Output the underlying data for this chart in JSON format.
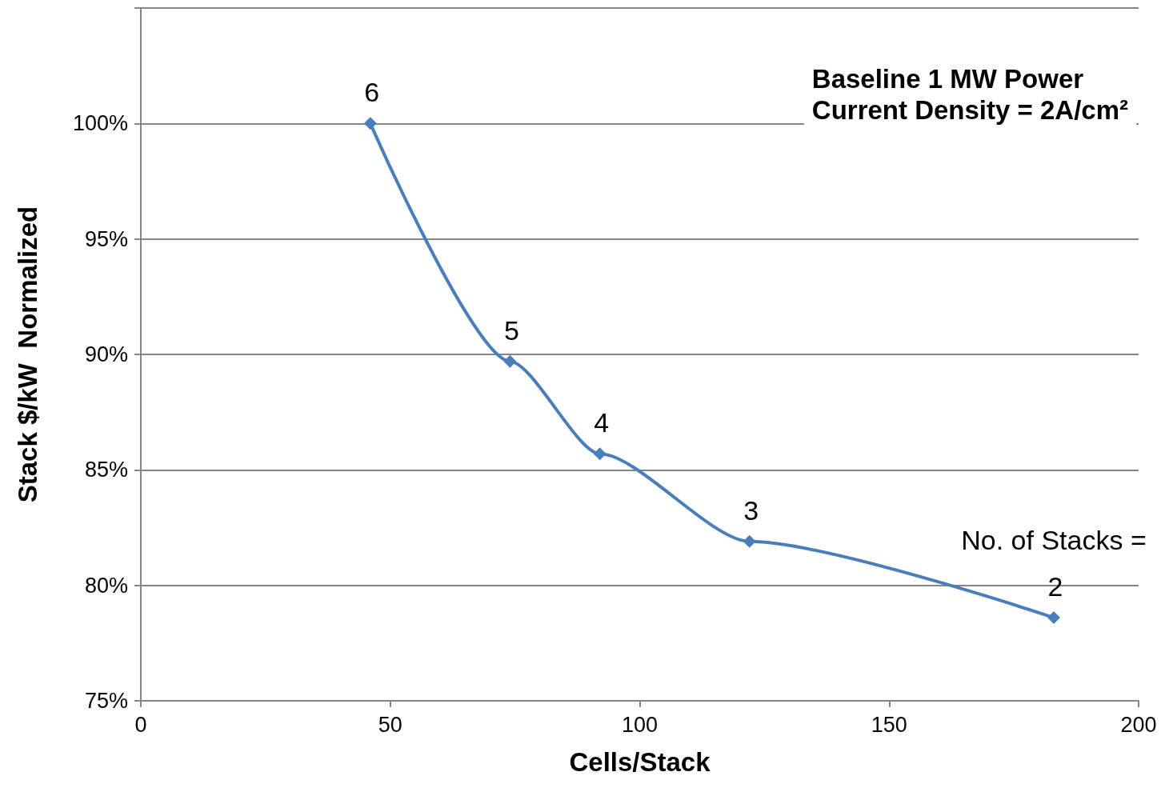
{
  "chart_data": {
    "type": "line",
    "title": "Baseline 1 MW Power",
    "subtitle": "Current Density = 2A/cm²",
    "xlabel": "Cells/Stack",
    "ylabel": "Stack $/kW  Normalized",
    "x": [
      46,
      74,
      92,
      122,
      183
    ],
    "series": [
      {
        "color": "#4a7ebb",
        "values": [
          100,
          89.7,
          85.7,
          81.9,
          78.6
        ]
      }
    ],
    "xlim": [
      0,
      200
    ],
    "xticks": [
      0,
      50,
      100,
      150,
      200
    ],
    "ylim": [
      75,
      105
    ],
    "yticks": [
      {
        "value": 75,
        "label": "75%"
      },
      {
        "value": 80,
        "label": "80%"
      },
      {
        "value": 85,
        "label": "85%"
      },
      {
        "value": 90,
        "label": "90%"
      },
      {
        "value": 95,
        "label": "95%"
      },
      {
        "value": 100,
        "label": "100%"
      },
      {
        "value": 105,
        "label": null
      }
    ],
    "annotations": [
      {
        "text": "6",
        "x": 46,
        "y": 100
      },
      {
        "text": "5",
        "x": 74,
        "y": 89.7
      },
      {
        "text": "4",
        "x": 92,
        "y": 85.7
      },
      {
        "text": "3",
        "x": 122,
        "y": 81.9
      },
      {
        "text": "2",
        "x": 183,
        "y": 78.6
      },
      "No. of Stacks ="
    ],
    "grid": "y",
    "marker": "diamond",
    "line_style": "solid"
  }
}
